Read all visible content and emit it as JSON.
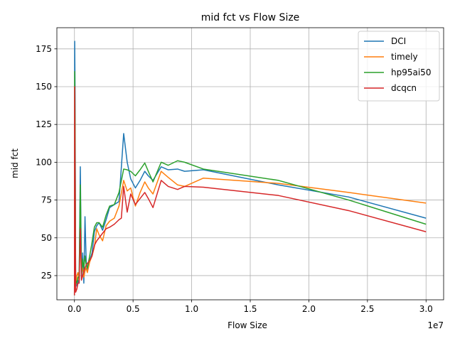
{
  "chart_data": {
    "type": "line",
    "title": "mid fct vs Flow Size",
    "xlabel": "Flow Size",
    "ylabel": "mid fct",
    "x_offset_label": "1e7",
    "xlim": [
      -1500000,
      31500000
    ],
    "ylim": [
      9,
      189
    ],
    "x_ticks": [
      0,
      5000000,
      10000000,
      15000000,
      20000000,
      25000000,
      30000000
    ],
    "x_tick_labels": [
      "0.0",
      "0.5",
      "1.0",
      "1.5",
      "2.0",
      "2.5",
      "3.0"
    ],
    "y_ticks": [
      25,
      50,
      75,
      100,
      125,
      150,
      175
    ],
    "y_tick_labels": [
      "25",
      "50",
      "75",
      "100",
      "125",
      "150",
      "175"
    ],
    "grid": true,
    "legend_position": "top-right",
    "series": [
      {
        "name": "DCI",
        "color": "#1f77b4",
        "points": [
          [
            0,
            12
          ],
          [
            20000,
            180
          ],
          [
            50000,
            150
          ],
          [
            100000,
            24
          ],
          [
            200000,
            18
          ],
          [
            300000,
            22
          ],
          [
            400000,
            20
          ],
          [
            500000,
            97
          ],
          [
            600000,
            22
          ],
          [
            700000,
            40
          ],
          [
            800000,
            20
          ],
          [
            900000,
            64
          ],
          [
            1000000,
            35
          ],
          [
            1100000,
            28
          ],
          [
            1300000,
            35
          ],
          [
            1500000,
            40
          ],
          [
            1700000,
            54
          ],
          [
            1900000,
            58
          ],
          [
            2100000,
            60
          ],
          [
            2400000,
            55
          ],
          [
            2700000,
            62
          ],
          [
            3000000,
            70
          ],
          [
            3400000,
            72
          ],
          [
            3800000,
            74
          ],
          [
            4200000,
            119
          ],
          [
            4500000,
            100
          ],
          [
            4800000,
            89
          ],
          [
            5200000,
            83
          ],
          [
            5600000,
            88
          ],
          [
            6000000,
            94
          ],
          [
            6300000,
            91
          ],
          [
            6700000,
            88
          ],
          [
            7400000,
            97
          ],
          [
            8000000,
            95
          ],
          [
            8800000,
            95.5
          ],
          [
            9400000,
            94
          ],
          [
            11000000,
            95
          ],
          [
            17400000,
            85
          ],
          [
            23400000,
            77
          ],
          [
            30000000,
            63
          ]
        ]
      },
      {
        "name": "timely",
        "color": "#ff7f0e",
        "points": [
          [
            0,
            12
          ],
          [
            20000,
            150
          ],
          [
            50000,
            120
          ],
          [
            100000,
            18
          ],
          [
            200000,
            25
          ],
          [
            300000,
            27
          ],
          [
            400000,
            21
          ],
          [
            500000,
            60
          ],
          [
            600000,
            28
          ],
          [
            700000,
            30
          ],
          [
            800000,
            24
          ],
          [
            900000,
            28
          ],
          [
            1000000,
            30
          ],
          [
            1100000,
            27
          ],
          [
            1300000,
            34
          ],
          [
            1500000,
            38
          ],
          [
            1700000,
            44
          ],
          [
            1900000,
            56
          ],
          [
            2100000,
            52
          ],
          [
            2400000,
            48
          ],
          [
            2700000,
            58
          ],
          [
            3000000,
            61
          ],
          [
            3400000,
            63
          ],
          [
            3800000,
            71
          ],
          [
            4200000,
            88
          ],
          [
            4500000,
            81
          ],
          [
            4800000,
            83
          ],
          [
            5200000,
            71
          ],
          [
            5600000,
            80
          ],
          [
            6000000,
            87
          ],
          [
            6300000,
            83
          ],
          [
            6700000,
            79
          ],
          [
            7400000,
            94
          ],
          [
            8000000,
            90
          ],
          [
            8800000,
            85
          ],
          [
            9400000,
            84
          ],
          [
            11000000,
            89.5
          ],
          [
            17400000,
            86
          ],
          [
            23400000,
            80
          ],
          [
            30000000,
            73
          ]
        ]
      },
      {
        "name": "hp95ai50",
        "color": "#2ca02c",
        "points": [
          [
            0,
            12
          ],
          [
            20000,
            160
          ],
          [
            50000,
            130
          ],
          [
            100000,
            22
          ],
          [
            200000,
            20
          ],
          [
            300000,
            24
          ],
          [
            400000,
            24
          ],
          [
            500000,
            85
          ],
          [
            600000,
            26
          ],
          [
            700000,
            36
          ],
          [
            800000,
            30
          ],
          [
            900000,
            38
          ],
          [
            1000000,
            32
          ],
          [
            1100000,
            30
          ],
          [
            1300000,
            38
          ],
          [
            1500000,
            47
          ],
          [
            1700000,
            57
          ],
          [
            1900000,
            60
          ],
          [
            2100000,
            60
          ],
          [
            2400000,
            57
          ],
          [
            2700000,
            65
          ],
          [
            3000000,
            71
          ],
          [
            3400000,
            72
          ],
          [
            3800000,
            80
          ],
          [
            4200000,
            95.5
          ],
          [
            4500000,
            95
          ],
          [
            4800000,
            94
          ],
          [
            5200000,
            91
          ],
          [
            5600000,
            95
          ],
          [
            6000000,
            99.5
          ],
          [
            6300000,
            94
          ],
          [
            6700000,
            87
          ],
          [
            7400000,
            100
          ],
          [
            8000000,
            98
          ],
          [
            8800000,
            101
          ],
          [
            9400000,
            100
          ],
          [
            11000000,
            95.5
          ],
          [
            17400000,
            88
          ],
          [
            23400000,
            75
          ],
          [
            30000000,
            59
          ]
        ]
      },
      {
        "name": "dcqcn",
        "color": "#d62728",
        "points": [
          [
            0,
            12
          ],
          [
            20000,
            150
          ],
          [
            50000,
            100
          ],
          [
            100000,
            14
          ],
          [
            200000,
            16
          ],
          [
            300000,
            20
          ],
          [
            400000,
            20
          ],
          [
            500000,
            56
          ],
          [
            600000,
            22
          ],
          [
            700000,
            25
          ],
          [
            800000,
            28
          ],
          [
            900000,
            30
          ],
          [
            1000000,
            32
          ],
          [
            1100000,
            33
          ],
          [
            1300000,
            35
          ],
          [
            1500000,
            38
          ],
          [
            1700000,
            45
          ],
          [
            1900000,
            48
          ],
          [
            2100000,
            50
          ],
          [
            2400000,
            53
          ],
          [
            2700000,
            56
          ],
          [
            3000000,
            57
          ],
          [
            3400000,
            59
          ],
          [
            3800000,
            62
          ],
          [
            4000000,
            63
          ],
          [
            4200000,
            84
          ],
          [
            4500000,
            67
          ],
          [
            4800000,
            79
          ],
          [
            5200000,
            72
          ],
          [
            5600000,
            76
          ],
          [
            6000000,
            80
          ],
          [
            6300000,
            76
          ],
          [
            6700000,
            70
          ],
          [
            7400000,
            88
          ],
          [
            8000000,
            84
          ],
          [
            8800000,
            82
          ],
          [
            9400000,
            84
          ],
          [
            11000000,
            83.5
          ],
          [
            17400000,
            78
          ],
          [
            23400000,
            68
          ],
          [
            30000000,
            54
          ]
        ]
      }
    ]
  }
}
